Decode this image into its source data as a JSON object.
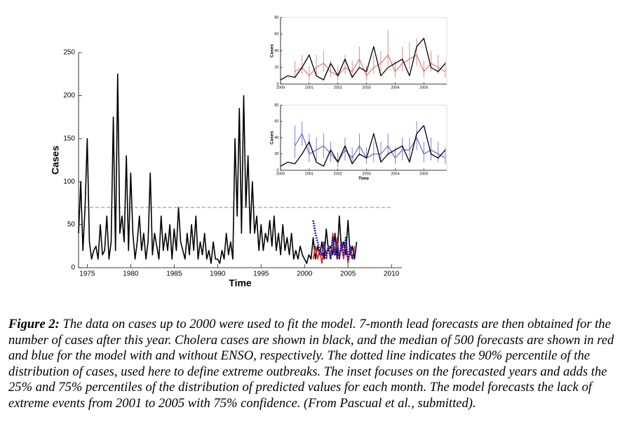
{
  "chart_data": [
    {
      "type": "line",
      "y_label": "Cases",
      "x_label": "Time",
      "xlim": [
        1974,
        2011.2
      ],
      "xticks": [
        1975,
        1980,
        1985,
        1990,
        1995,
        2000,
        2005,
        2010
      ],
      "ylim": [
        0,
        250
      ],
      "yticks": [
        0,
        50,
        100,
        150,
        200,
        250
      ],
      "threshold": 70,
      "threshold_color": "#8080c0",
      "series": [
        {
          "color": "#000000",
          "line_style": "solid",
          "x": [
            1974,
            1974.25,
            1974.5,
            1974.75,
            1975,
            1975.25,
            1975.5,
            1975.75,
            1976,
            1976.25,
            1976.5,
            1976.75,
            1977,
            1977.25,
            1977.5,
            1977.75,
            1978,
            1978.25,
            1978.5,
            1978.75,
            1979,
            1979.25,
            1979.5,
            1979.75,
            1980,
            1980.25,
            1980.5,
            1980.75,
            1981,
            1981.25,
            1981.5,
            1981.75,
            1982,
            1982.25,
            1982.5,
            1982.75,
            1983,
            1983.25,
            1983.5,
            1983.75,
            1984,
            1984.25,
            1984.5,
            1984.75,
            1985,
            1985.25,
            1985.5,
            1985.75,
            1986,
            1986.25,
            1986.5,
            1986.75,
            1987,
            1987.25,
            1987.5,
            1987.75,
            1988,
            1988.25,
            1988.5,
            1988.75,
            1989,
            1989.25,
            1989.5,
            1989.75,
            1990,
            1990.25,
            1990.5,
            1990.75,
            1991,
            1991.25,
            1991.5,
            1991.75,
            1992,
            1992.25,
            1992.5,
            1992.75,
            1993,
            1993.25,
            1993.5,
            1993.75,
            1994,
            1994.25,
            1994.5,
            1994.75,
            1995,
            1995.25,
            1995.5,
            1995.75,
            1996,
            1996.25,
            1996.5,
            1996.75,
            1997,
            1997.25,
            1997.5,
            1997.75,
            1998,
            1998.25,
            1998.5,
            1998.75,
            1999,
            1999.25,
            1999.5,
            1999.75,
            2000,
            2000.25,
            2000.5,
            2000.75,
            2001,
            2001.25,
            2001.5,
            2001.75,
            2002,
            2002.25,
            2002.5,
            2002.75,
            2003,
            2003.25,
            2003.5,
            2003.75,
            2004,
            2004.25,
            2004.5,
            2004.75,
            2005,
            2005.25,
            2005.5,
            2005.75,
            2006
          ],
          "values": [
            40,
            100,
            20,
            70,
            150,
            30,
            10,
            20,
            25,
            10,
            50,
            15,
            20,
            60,
            10,
            30,
            175,
            20,
            225,
            40,
            60,
            30,
            130,
            20,
            110,
            40,
            10,
            30,
            60,
            20,
            40,
            10,
            30,
            110,
            15,
            40,
            25,
            10,
            60,
            20,
            40,
            20,
            50,
            10,
            45,
            20,
            70,
            30,
            20,
            10,
            40,
            15,
            50,
            20,
            60,
            10,
            30,
            15,
            40,
            10,
            20,
            5,
            30,
            10,
            10,
            5,
            20,
            10,
            40,
            15,
            30,
            10,
            150,
            60,
            185,
            40,
            200,
            70,
            130,
            40,
            100,
            40,
            60,
            20,
            50,
            20,
            40,
            30,
            55,
            25,
            60,
            20,
            40,
            15,
            50,
            20,
            35,
            15,
            40,
            10,
            20,
            10,
            25,
            15,
            10,
            5,
            15,
            10,
            35,
            10,
            25,
            15,
            30,
            10,
            45,
            20,
            25,
            15,
            40,
            10,
            60,
            20,
            30,
            15,
            55,
            15,
            25,
            10,
            30
          ]
        },
        {
          "color": "#e02020",
          "line_style": "solid",
          "x": [
            2001,
            2001.25,
            2001.5,
            2001.75,
            2002,
            2002.25,
            2002.5,
            2002.75,
            2003,
            2003.25,
            2003.5,
            2003.75,
            2004,
            2004.25,
            2004.5,
            2004.75,
            2005,
            2005.25,
            2005.5,
            2005.75
          ],
          "values": [
            10,
            25,
            10,
            20,
            5,
            30,
            15,
            25,
            10,
            40,
            15,
            35,
            10,
            25,
            10,
            30,
            5,
            20,
            10,
            25
          ]
        },
        {
          "color": "#1a1ab0",
          "line_style": "dotted",
          "x": [
            2001,
            2001.25,
            2001.5,
            2001.75,
            2002,
            2002.25,
            2002.5,
            2002.75,
            2003,
            2003.25,
            2003.5,
            2003.75,
            2004,
            2004.25,
            2004.5,
            2004.75,
            2005,
            2005.25,
            2005.5,
            2005.75
          ],
          "values": [
            55,
            40,
            30,
            20,
            15,
            30,
            10,
            25,
            10,
            35,
            15,
            30,
            10,
            30,
            15,
            35,
            10,
            25,
            10,
            20
          ]
        }
      ]
    },
    {
      "type": "line",
      "y_label": "Cases",
      "xlim": [
        2000,
        2005.8
      ],
      "xticks": [
        2000,
        2001,
        2002,
        2003,
        2004,
        2005
      ],
      "ylim": [
        0,
        80
      ],
      "yticks": [
        0,
        20,
        40,
        60,
        80
      ],
      "series": [
        {
          "color": "#d98080",
          "line_style": "solid",
          "x": [
            2000.5,
            2000.75,
            2001,
            2001.25,
            2001.5,
            2001.75,
            2002,
            2002.25,
            2002.5,
            2002.75,
            2003,
            2003.25,
            2003.5,
            2003.75,
            2004,
            2004.25,
            2004.5,
            2004.75,
            2005,
            2005.25,
            2005.5,
            2005.75
          ],
          "values": [
            15,
            20,
            10,
            20,
            25,
            15,
            10,
            20,
            15,
            30,
            10,
            20,
            25,
            35,
            15,
            25,
            30,
            35,
            15,
            25,
            20,
            15
          ],
          "low": [
            8,
            12,
            4,
            12,
            15,
            8,
            4,
            12,
            8,
            18,
            4,
            12,
            15,
            22,
            8,
            15,
            18,
            22,
            8,
            15,
            12,
            8
          ],
          "high": [
            28,
            35,
            22,
            35,
            40,
            28,
            22,
            35,
            28,
            45,
            22,
            35,
            40,
            65,
            28,
            45,
            50,
            55,
            28,
            40,
            35,
            28
          ]
        },
        {
          "color": "#000000",
          "line_style": "solid",
          "x": [
            2000,
            2000.25,
            2000.5,
            2000.75,
            2001,
            2001.25,
            2001.5,
            2001.75,
            2002,
            2002.25,
            2002.5,
            2002.75,
            2003,
            2003.25,
            2003.5,
            2003.75,
            2004,
            2004.25,
            2004.5,
            2004.75,
            2005,
            2005.25,
            2005.5,
            2005.75
          ],
          "values": [
            5,
            10,
            8,
            20,
            35,
            10,
            5,
            25,
            10,
            30,
            8,
            20,
            15,
            45,
            10,
            20,
            25,
            30,
            10,
            45,
            55,
            20,
            15,
            25
          ]
        }
      ]
    },
    {
      "type": "line",
      "y_label": "Cases",
      "x_label": "Time",
      "xlim": [
        2000,
        2005.8
      ],
      "xticks": [
        2000,
        2001,
        2002,
        2003,
        2004,
        2005
      ],
      "ylim": [
        0,
        80
      ],
      "yticks": [
        0,
        20,
        40,
        60,
        80
      ],
      "series": [
        {
          "color": "#7070d0",
          "line_style": "solid",
          "x": [
            2000.5,
            2000.75,
            2001,
            2001.25,
            2001.5,
            2001.75,
            2002,
            2002.25,
            2002.5,
            2002.75,
            2003,
            2003.25,
            2003.5,
            2003.75,
            2004,
            2004.25,
            2004.5,
            2004.75,
            2005,
            2005.25,
            2005.5,
            2005.75
          ],
          "values": [
            30,
            45,
            20,
            25,
            30,
            20,
            10,
            25,
            15,
            30,
            15,
            20,
            20,
            30,
            15,
            25,
            25,
            40,
            20,
            25,
            20,
            15
          ],
          "low": [
            15,
            30,
            10,
            12,
            15,
            10,
            4,
            12,
            8,
            18,
            8,
            10,
            10,
            18,
            8,
            12,
            12,
            25,
            10,
            12,
            10,
            8
          ],
          "high": [
            55,
            60,
            45,
            40,
            45,
            35,
            22,
            40,
            28,
            45,
            28,
            35,
            35,
            45,
            28,
            40,
            40,
            60,
            35,
            40,
            35,
            28
          ]
        },
        {
          "color": "#000000",
          "line_style": "solid",
          "x": [
            2000,
            2000.25,
            2000.5,
            2000.75,
            2001,
            2001.25,
            2001.5,
            2001.75,
            2002,
            2002.25,
            2002.5,
            2002.75,
            2003,
            2003.25,
            2003.5,
            2003.75,
            2004,
            2004.25,
            2004.5,
            2004.75,
            2005,
            2005.25,
            2005.5,
            2005.75
          ],
          "values": [
            5,
            10,
            8,
            20,
            35,
            10,
            5,
            25,
            10,
            30,
            8,
            20,
            15,
            45,
            10,
            20,
            25,
            30,
            10,
            45,
            55,
            20,
            15,
            25
          ]
        }
      ]
    }
  ],
  "caption": {
    "label": "Figure 2:",
    "text": "The data on cases up to 2000 were used to fit the model.  7-month lead forecasts are then obtained for the number of cases after this year.  Cholera cases are shown in black, and the median of 500 forecasts are shown in red and blue for the model with and without ENSO, respectively.  The dotted line indicates the 90% percentile of the distribution of cases, used here to define extreme outbreaks.   The inset focuses on the forecasted years and adds the 25% and 75% percentiles of the distribution of predicted values for each month.  The model forecasts the lack of extreme events from 2001 to 2005 with 75% confidence.  (From Pascual et al., submitted)."
  }
}
